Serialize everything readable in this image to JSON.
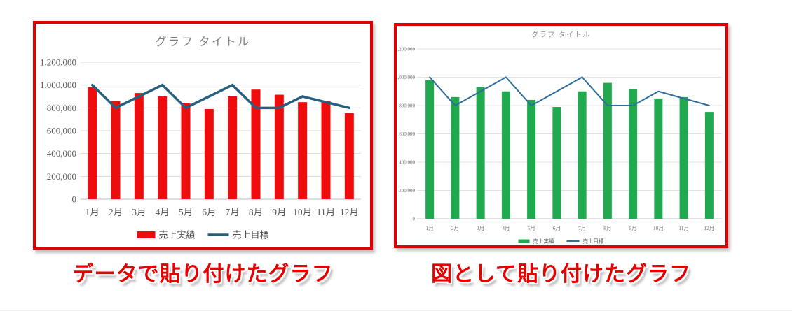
{
  "page": {
    "background": "#ffffff"
  },
  "frame": {
    "border_color": "#e00000"
  },
  "caption_style": {
    "text_color": "#e60000",
    "outline_color": "#ffffff",
    "shadow_color": "#8c8c8c"
  },
  "captions": {
    "left": "データで貼り付けたグラフ",
    "right": "図として貼り付けたグラフ"
  },
  "chart_data": [
    {
      "type": "bar",
      "title": "グラフ タイトル",
      "categories": [
        "1月",
        "2月",
        "3月",
        "4月",
        "5月",
        "6月",
        "7月",
        "8月",
        "9月",
        "10月",
        "11月",
        "12月"
      ],
      "series": [
        {
          "name": "売上実績",
          "type": "bar",
          "color": "#ee0c0c",
          "values": [
            980000,
            860000,
            930000,
            900000,
            840000,
            790000,
            900000,
            960000,
            915000,
            850000,
            860000,
            755000
          ]
        },
        {
          "name": "売上目標",
          "type": "line",
          "color": "#27617f",
          "values": [
            1000000,
            800000,
            900000,
            1000000,
            800000,
            900000,
            1000000,
            800000,
            800000,
            900000,
            850000,
            800000
          ]
        }
      ],
      "ylim": [
        0,
        1200000
      ],
      "ytick_step": 200000,
      "grid": true,
      "legend_position": "bottom",
      "title_color": "#7f7f7f",
      "axis_text_color": "#595959",
      "legend_text_color": "#404040",
      "grid_color": "#d9d9d9",
      "axis_line_color": "#bfbfbf"
    },
    {
      "type": "bar",
      "title": "グラフ タイトル",
      "categories": [
        "1月",
        "2月",
        "3月",
        "4月",
        "5月",
        "6月",
        "7月",
        "8月",
        "9月",
        "10月",
        "11月",
        "12月"
      ],
      "series": [
        {
          "name": "売上実績",
          "type": "bar",
          "color": "#20a94e",
          "values": [
            980000,
            860000,
            930000,
            900000,
            840000,
            790000,
            900000,
            960000,
            915000,
            850000,
            860000,
            755000
          ]
        },
        {
          "name": "売上目標",
          "type": "line",
          "color": "#2e6d9c",
          "values": [
            1000000,
            800000,
            900000,
            1000000,
            800000,
            900000,
            1000000,
            800000,
            800000,
            900000,
            850000,
            800000
          ]
        }
      ],
      "ylim": [
        0,
        1200000
      ],
      "ytick_step": 200000,
      "grid": true,
      "legend_position": "bottom",
      "title_color": "#8c8c8c",
      "axis_text_color": "#737373",
      "legend_text_color": "#595959",
      "grid_color": "#e2e2e2",
      "axis_line_color": "#c6c6c6"
    }
  ]
}
